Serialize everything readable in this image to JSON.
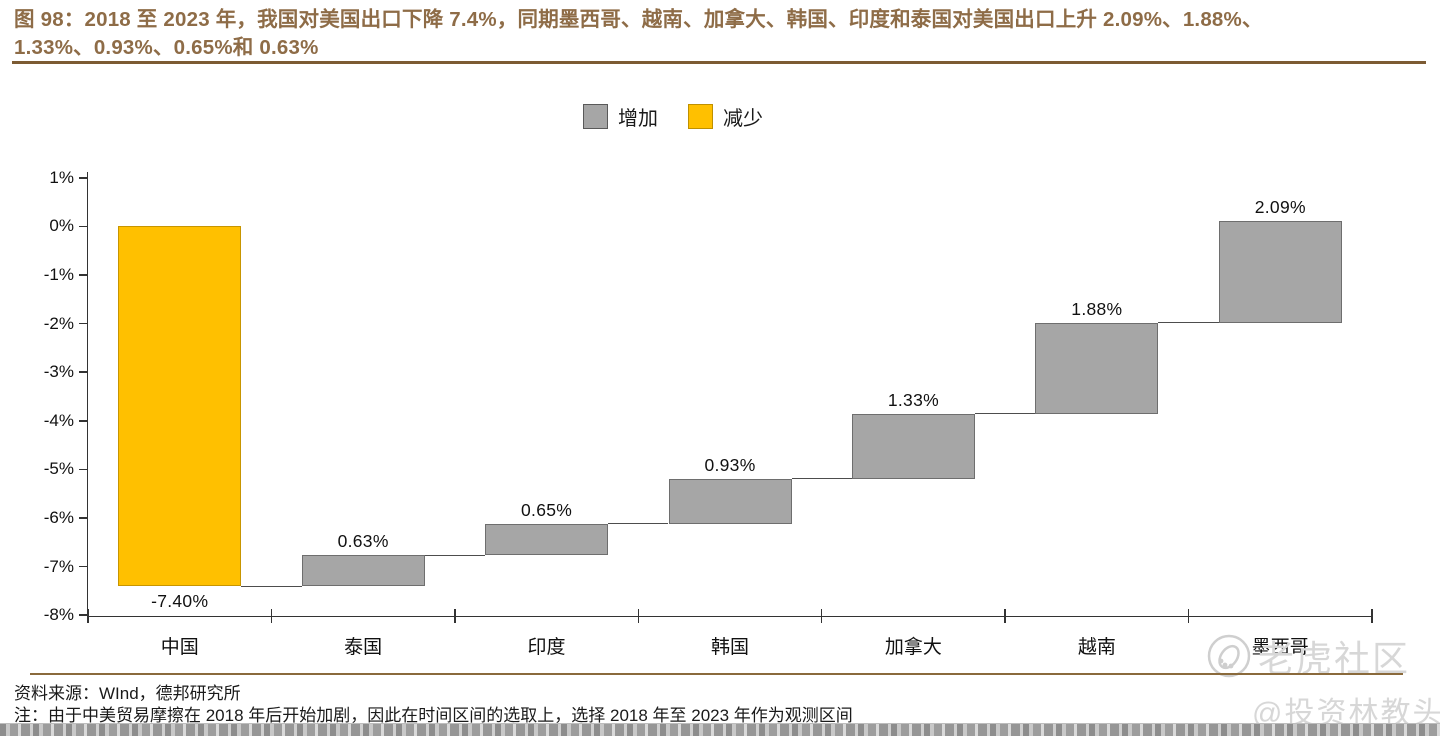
{
  "figure_title": {
    "line1": "图 98：2018 至 2023 年，我国对美国出口下降 7.4%，同期墨西哥、越南、加拿大、韩国、印度和泰国对美国出口上升 2.09%、1.88%、",
    "line2": "1.33%、0.93%、0.65%和 0.63%"
  },
  "legend": {
    "increase_label": "增加",
    "decrease_label": "减少",
    "increase_color": "#A6A6A6",
    "decrease_color": "#FFC000"
  },
  "chart_data": {
    "type": "bar",
    "subtype": "waterfall",
    "title": "",
    "categories": [
      "中国",
      "泰国",
      "印度",
      "韩国",
      "加拿大",
      "越南",
      "墨西哥"
    ],
    "values": [
      -7.4,
      0.63,
      0.65,
      0.93,
      1.33,
      1.88,
      2.09
    ],
    "cumulative": [
      -7.4,
      -6.77,
      -6.12,
      -5.19,
      -3.86,
      -1.98,
      0.11
    ],
    "bar_labels": [
      "-7.40%",
      "0.63%",
      "0.65%",
      "0.93%",
      "1.33%",
      "1.88%",
      "2.09%"
    ],
    "ytick_labels": [
      "1%",
      "0%",
      "-1%",
      "-2%",
      "-3%",
      "-4%",
      "-5%",
      "-6%",
      "-7%",
      "-8%"
    ],
    "ylim": [
      -8,
      1
    ],
    "ytick_step": 1,
    "grid": false,
    "legend_position": "top-center",
    "series_colors": {
      "increase": "#A6A6A6",
      "decrease": "#FFC000"
    }
  },
  "footer": {
    "source": "资料来源：WInd，德邦研究所",
    "note": "注：由于中美贸易摩擦在 2018 年后开始加剧，因此在时间区间的选取上，选择 2018 年至 2023 年作为观测区间"
  },
  "watermark": {
    "community_name": "老虎社区",
    "user_handle": "@投资林教头",
    "logo": "tiger-logo"
  }
}
